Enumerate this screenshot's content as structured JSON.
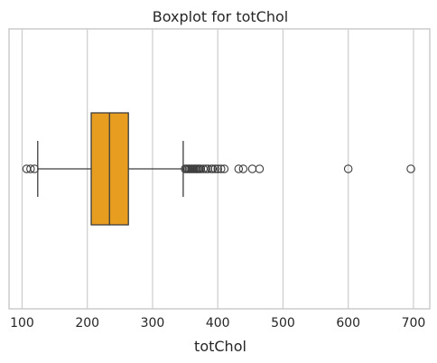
{
  "chart_data": {
    "type": "boxplot",
    "orientation": "horizontal",
    "title": "Boxplot for totChol",
    "xlabel": "totChol",
    "ylabel": "",
    "xlim": [
      80,
      725
    ],
    "xticks": [
      100,
      200,
      300,
      400,
      500,
      600,
      700
    ],
    "grid": {
      "x": true,
      "y": false
    },
    "box": {
      "q1": 206,
      "median": 234,
      "q3": 263,
      "whisker_low": 124,
      "whisker_high": 347
    },
    "outliers": [
      107,
      113,
      119,
      350,
      352,
      354,
      356,
      358,
      360,
      362,
      364,
      366,
      368,
      370,
      372,
      374,
      378,
      382,
      385,
      390,
      392,
      396,
      400,
      405,
      410,
      432,
      439,
      453,
      464,
      600,
      696
    ],
    "colors": {
      "box_fill": "#e69d20",
      "line": "#3d3d3d",
      "grid": "#cccccc",
      "frame": "#cccccc"
    }
  }
}
